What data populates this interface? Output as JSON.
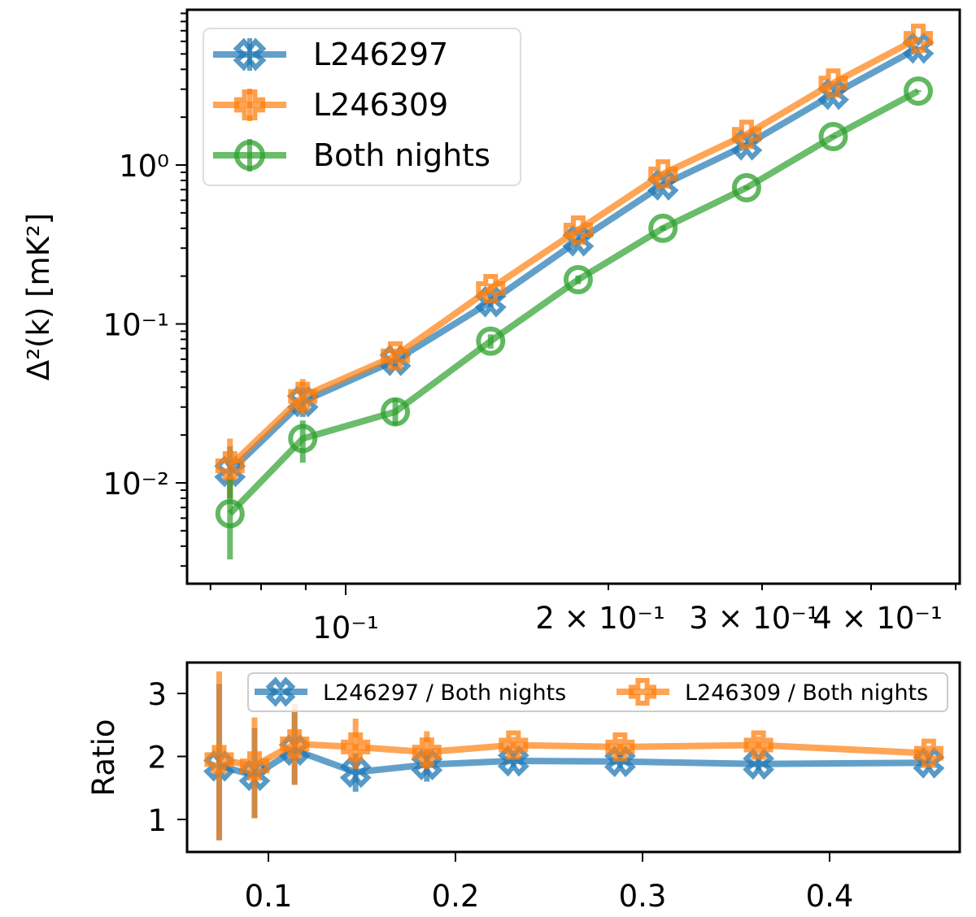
{
  "chart_data": [
    {
      "type": "line",
      "panel": "top",
      "xscale": "log",
      "yscale": "log",
      "xlim": [
        0.0658,
        0.506
      ],
      "ylim": [
        0.0023,
        9.5
      ],
      "ylabel": "Δ²(k) [mK²]",
      "xlabel": "",
      "xtick_labels": [
        {
          "value": 0.1,
          "label": "10⁻¹",
          "major": true
        },
        {
          "value": 0.2,
          "label": "2 × 10⁻¹"
        },
        {
          "value": 0.3,
          "label": "3 × 10⁻¹"
        },
        {
          "value": 0.4,
          "label": "4 × 10⁻¹"
        }
      ],
      "ytick_labels": [
        {
          "value": 1,
          "label": "10⁰"
        },
        {
          "value": 0.1,
          "label": "10⁻¹"
        },
        {
          "value": 0.01,
          "label": "10⁻²"
        }
      ],
      "legend": "top-left",
      "x": [
        0.0737,
        0.0893,
        0.114,
        0.1466,
        0.1847,
        0.231,
        0.288,
        0.362,
        0.453
      ],
      "series": [
        {
          "name": "L246297",
          "color": "#1f77b4",
          "marker": "X",
          "values": [
            0.0118,
            0.0325,
            0.059,
            0.138,
            0.334,
            0.75,
            1.34,
            2.79,
            5.45
          ],
          "err_low": [
            0.008,
            0.026,
            0.053,
            0.128,
            0.318,
            0.72,
            1.3,
            2.72,
            5.35
          ],
          "err_high": [
            0.017,
            0.04,
            0.066,
            0.148,
            0.35,
            0.78,
            1.38,
            2.86,
            5.55
          ]
        },
        {
          "name": "L246309",
          "color": "#ff7f0e",
          "marker": "P",
          "values": [
            0.0128,
            0.035,
            0.063,
            0.167,
            0.39,
            0.88,
            1.56,
            3.28,
            6.27
          ],
          "err_low": [
            0.008,
            0.027,
            0.056,
            0.155,
            0.37,
            0.85,
            1.52,
            3.2,
            6.15
          ],
          "err_high": [
            0.019,
            0.045,
            0.07,
            0.18,
            0.41,
            0.91,
            1.6,
            3.36,
            6.4
          ]
        },
        {
          "name": "Both nights",
          "color": "#2ca02c",
          "marker": "o",
          "values": [
            0.0064,
            0.019,
            0.028,
            0.078,
            0.19,
            0.4,
            0.72,
            1.51,
            2.92
          ],
          "err_low": [
            0.0033,
            0.0134,
            0.023,
            0.07,
            0.178,
            0.385,
            0.7,
            1.48,
            2.88
          ],
          "err_high": [
            0.0105,
            0.0247,
            0.034,
            0.086,
            0.202,
            0.415,
            0.74,
            1.54,
            2.96
          ]
        }
      ]
    },
    {
      "type": "line",
      "panel": "bottom",
      "xscale": "linear",
      "yscale": "linear",
      "xlim": [
        0.0565,
        0.469
      ],
      "ylim": [
        0.48,
        3.49
      ],
      "ylabel": "Ratio",
      "xlabel": "",
      "xtick_labels": [
        {
          "value": 0.1,
          "label": "0.1"
        },
        {
          "value": 0.2,
          "label": "0.2"
        },
        {
          "value": 0.3,
          "label": "0.3"
        },
        {
          "value": 0.4,
          "label": "0.4"
        }
      ],
      "ytick_labels": [
        {
          "value": 1,
          "label": "1"
        },
        {
          "value": 2,
          "label": "2"
        },
        {
          "value": 3,
          "label": "3"
        }
      ],
      "legend": "top",
      "x": [
        0.0737,
        0.0926,
        0.114,
        0.1466,
        0.1847,
        0.231,
        0.288,
        0.362,
        0.453
      ],
      "series": [
        {
          "name": "L246297 / Both nights",
          "color": "#1f77b4",
          "marker": "X",
          "values": [
            1.85,
            1.7,
            2.1,
            1.75,
            1.87,
            1.93,
            1.92,
            1.88,
            1.9
          ],
          "err_low": [
            0.67,
            1.02,
            1.55,
            1.44,
            1.6,
            1.83,
            1.82,
            1.78,
            1.8
          ],
          "err_high": [
            3.15,
            2.45,
            2.75,
            2.05,
            2.1,
            2.03,
            2.02,
            1.98,
            2.0
          ]
        },
        {
          "name": "L246309 / Both nights",
          "color": "#ff7f0e",
          "marker": "P",
          "values": [
            1.95,
            1.85,
            2.2,
            2.15,
            2.07,
            2.18,
            2.15,
            2.18,
            2.05
          ],
          "err_low": [
            0.67,
            1.02,
            1.55,
            1.8,
            1.8,
            2.05,
            2.02,
            2.05,
            1.93
          ],
          "err_high": [
            3.35,
            2.62,
            2.83,
            2.6,
            2.4,
            2.31,
            2.28,
            2.32,
            2.17
          ]
        }
      ]
    }
  ]
}
